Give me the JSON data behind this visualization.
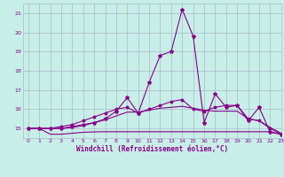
{
  "xlabel": "Windchill (Refroidissement éolien,°C)",
  "background_color": "#c8eee8",
  "grid_color": "#aabbcc",
  "line_color": "#880088",
  "xlim_min": -0.5,
  "xlim_max": 23,
  "ylim_min": 14.5,
  "ylim_max": 21.5,
  "yticks": [
    15,
    16,
    17,
    18,
    19,
    20,
    21
  ],
  "xticks": [
    0,
    1,
    2,
    3,
    4,
    5,
    6,
    7,
    8,
    9,
    10,
    11,
    12,
    13,
    14,
    15,
    16,
    17,
    18,
    19,
    20,
    21,
    22,
    23
  ],
  "hours": [
    0,
    1,
    2,
    3,
    4,
    5,
    6,
    7,
    8,
    9,
    10,
    11,
    12,
    13,
    14,
    15,
    16,
    17,
    18,
    19,
    20,
    21,
    22,
    23
  ],
  "line_main": [
    15.0,
    15.0,
    15.0,
    15.0,
    15.1,
    15.2,
    15.3,
    15.5,
    15.9,
    16.6,
    15.8,
    17.4,
    18.8,
    19.0,
    21.2,
    19.8,
    15.3,
    16.8,
    16.1,
    16.2,
    15.4,
    16.1,
    14.8,
    14.7
  ],
  "line_upper": [
    15.0,
    15.0,
    15.0,
    15.1,
    15.2,
    15.4,
    15.6,
    15.8,
    16.0,
    16.1,
    15.8,
    16.0,
    16.2,
    16.4,
    16.5,
    16.0,
    15.9,
    16.1,
    16.2,
    16.2,
    15.5,
    15.4,
    15.0,
    14.7
  ],
  "line_lower": [
    15.0,
    15.0,
    14.7,
    14.7,
    14.75,
    14.8,
    14.82,
    14.83,
    14.83,
    14.83,
    14.83,
    14.83,
    14.83,
    14.83,
    14.83,
    14.83,
    14.83,
    14.83,
    14.83,
    14.83,
    14.83,
    14.83,
    14.83,
    14.7
  ],
  "line_mid": [
    15.0,
    15.0,
    15.0,
    15.0,
    15.05,
    15.15,
    15.3,
    15.45,
    15.65,
    15.85,
    15.85,
    15.95,
    16.05,
    16.1,
    16.15,
    16.05,
    15.95,
    15.9,
    15.9,
    15.9,
    15.5,
    15.4,
    15.05,
    14.75
  ]
}
